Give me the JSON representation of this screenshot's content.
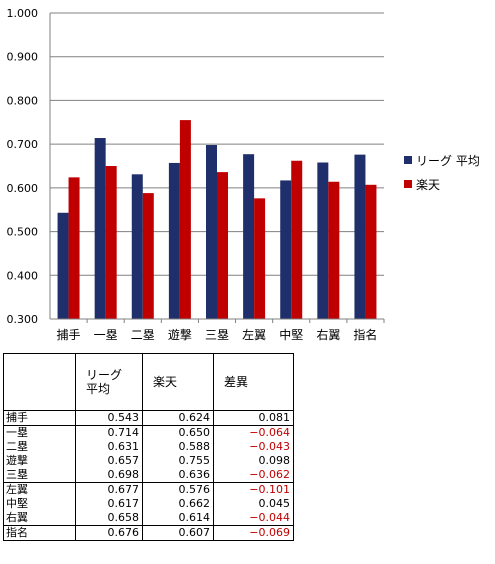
{
  "chart_data": {
    "type": "bar",
    "categories": [
      "捕手",
      "一塁",
      "二塁",
      "遊撃",
      "三塁",
      "左翼",
      "中堅",
      "右翼",
      "指名"
    ],
    "series": [
      {
        "name": "リーグ  平均",
        "color": "#1f2f6b",
        "values": [
          0.543,
          0.714,
          0.631,
          0.657,
          0.698,
          0.677,
          0.617,
          0.658,
          0.676
        ]
      },
      {
        "name": "楽天",
        "color": "#c00000",
        "values": [
          0.624,
          0.65,
          0.588,
          0.755,
          0.636,
          0.576,
          0.662,
          0.614,
          0.607
        ]
      }
    ],
    "ylim": [
      0.3,
      1.0
    ],
    "yticks": [
      "0.300",
      "0.400",
      "0.500",
      "0.600",
      "0.700",
      "0.800",
      "0.900",
      "1.000"
    ],
    "grid": true,
    "legend": "right",
    "title": "",
    "xlabel": "",
    "ylabel": ""
  },
  "table": {
    "header": [
      "",
      "リーグ\n平均",
      "楽天",
      "差異"
    ],
    "rows": [
      {
        "pos": "捕手",
        "league": "0.543",
        "team": "0.624",
        "diff": "0.081",
        "neg": false,
        "group_start": true
      },
      {
        "pos": "一塁",
        "league": "0.714",
        "team": "0.650",
        "diff": "−0.064",
        "neg": true,
        "group_start": true
      },
      {
        "pos": "二塁",
        "league": "0.631",
        "team": "0.588",
        "diff": "−0.043",
        "neg": true,
        "group_start": false
      },
      {
        "pos": "遊撃",
        "league": "0.657",
        "team": "0.755",
        "diff": "0.098",
        "neg": false,
        "group_start": false
      },
      {
        "pos": "三塁",
        "league": "0.698",
        "team": "0.636",
        "diff": "−0.062",
        "neg": true,
        "group_start": false
      },
      {
        "pos": "左翼",
        "league": "0.677",
        "team": "0.576",
        "diff": "−0.101",
        "neg": true,
        "group_start": true
      },
      {
        "pos": "中堅",
        "league": "0.617",
        "team": "0.662",
        "diff": "0.045",
        "neg": false,
        "group_start": false
      },
      {
        "pos": "右翼",
        "league": "0.658",
        "team": "0.614",
        "diff": "−0.044",
        "neg": true,
        "group_start": false
      },
      {
        "pos": "指名",
        "league": "0.676",
        "team": "0.607",
        "diff": "−0.069",
        "neg": true,
        "group_start": true
      }
    ]
  }
}
